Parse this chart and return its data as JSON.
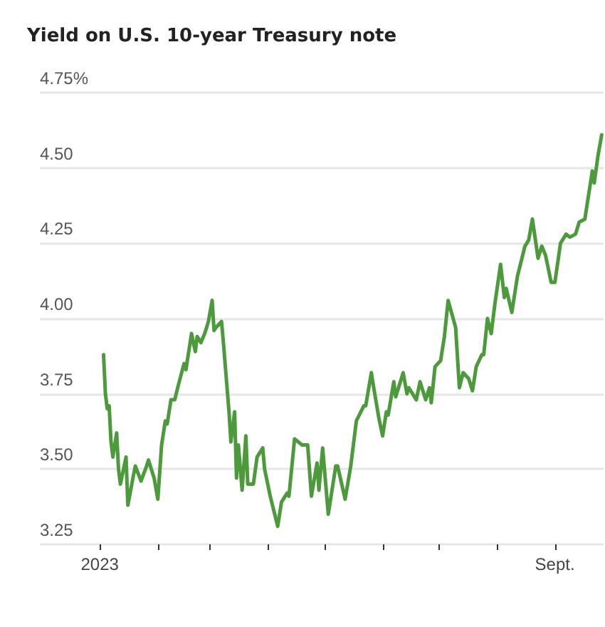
{
  "chart_data": {
    "type": "line",
    "title": "Yield on U.S. 10-year Treasury note",
    "x": [
      "2023-01-03",
      "2023-01-04",
      "2023-01-05",
      "2023-01-06",
      "2023-01-07",
      "2023-01-08",
      "2023-01-10",
      "2023-01-11",
      "2023-01-12",
      "2023-01-15",
      "2023-01-16",
      "2023-01-19",
      "2023-01-20",
      "2023-01-23",
      "2023-01-26",
      "2023-01-27",
      "2023-01-30",
      "2023-02-01",
      "2023-02-03",
      "2023-02-05",
      "2023-02-06",
      "2023-02-08",
      "2023-02-10",
      "2023-02-12",
      "2023-02-15",
      "2023-02-16",
      "2023-02-19",
      "2023-02-21",
      "2023-02-22",
      "2023-02-24",
      "2023-02-26",
      "2023-02-28",
      "2023-03-02",
      "2023-03-03",
      "2023-03-04",
      "2023-03-07",
      "2023-03-08",
      "2023-03-11",
      "2023-03-12",
      "2023-03-14",
      "2023-03-15",
      "2023-03-16",
      "2023-03-18",
      "2023-03-20",
      "2023-03-21",
      "2023-03-24",
      "2023-03-26",
      "2023-03-29",
      "2023-03-30",
      "2023-04-02",
      "2023-04-06",
      "2023-04-08",
      "2023-04-11",
      "2023-04-12",
      "2023-04-15",
      "2023-04-19",
      "2023-04-22",
      "2023-04-24",
      "2023-04-27",
      "2023-04-28",
      "2023-04-30",
      "2023-05-03",
      "2023-05-07",
      "2023-05-08",
      "2023-05-12",
      "2023-05-15",
      "2023-05-18",
      "2023-05-22",
      "2023-05-23",
      "2023-05-26",
      "2023-05-27",
      "2023-05-30",
      "2023-06-01",
      "2023-06-03",
      "2023-06-04",
      "2023-06-07",
      "2023-06-08",
      "2023-06-12",
      "2023-06-14",
      "2023-06-15",
      "2023-06-19",
      "2023-06-21",
      "2023-06-24",
      "2023-06-26",
      "2023-06-27",
      "2023-06-29",
      "2023-07-02",
      "2023-07-04",
      "2023-07-06",
      "2023-07-10",
      "2023-07-12",
      "2023-07-14",
      "2023-07-17",
      "2023-07-19",
      "2023-07-21",
      "2023-07-24",
      "2023-07-25",
      "2023-07-27",
      "2023-07-29",
      "2023-07-31",
      "2023-08-03",
      "2023-08-05",
      "2023-08-06",
      "2023-08-09",
      "2023-08-12",
      "2023-08-16",
      "2023-08-18",
      "2023-08-20",
      "2023-08-23",
      "2023-08-25",
      "2023-08-27",
      "2023-08-30",
      "2023-09-01",
      "2023-09-04",
      "2023-09-07",
      "2023-09-09",
      "2023-09-12",
      "2023-09-14",
      "2023-09-17",
      "2023-09-19",
      "2023-09-21",
      "2023-09-22",
      "2023-09-24",
      "2023-09-26"
    ],
    "series": [
      {
        "color": "#4c9a3c",
        "values": [
          3.88,
          3.75,
          3.7,
          3.71,
          3.59,
          3.54,
          3.62,
          3.5,
          3.45,
          3.54,
          3.38,
          3.48,
          3.51,
          3.46,
          3.51,
          3.53,
          3.47,
          3.4,
          3.58,
          3.66,
          3.65,
          3.73,
          3.73,
          3.78,
          3.85,
          3.83,
          3.95,
          3.89,
          3.94,
          3.92,
          3.95,
          3.99,
          4.06,
          3.96,
          3.97,
          3.99,
          3.92,
          3.69,
          3.59,
          3.69,
          3.47,
          3.58,
          3.43,
          3.61,
          3.45,
          3.45,
          3.54,
          3.57,
          3.5,
          3.41,
          3.31,
          3.39,
          3.42,
          3.41,
          3.6,
          3.58,
          3.58,
          3.41,
          3.52,
          3.43,
          3.57,
          3.35,
          3.51,
          3.51,
          3.4,
          3.51,
          3.66,
          3.71,
          3.71,
          3.82,
          3.78,
          3.67,
          3.61,
          3.69,
          3.68,
          3.79,
          3.74,
          3.82,
          3.75,
          3.77,
          3.73,
          3.79,
          3.73,
          3.77,
          3.72,
          3.84,
          3.86,
          3.94,
          4.06,
          3.97,
          3.77,
          3.82,
          3.8,
          3.76,
          3.84,
          3.88,
          3.88,
          4.0,
          3.95,
          4.05,
          4.18,
          4.07,
          4.1,
          4.02,
          4.14,
          4.24,
          4.26,
          4.33,
          4.2,
          4.24,
          4.21,
          4.12,
          4.12,
          4.25,
          4.28,
          4.27,
          4.28,
          4.32,
          4.33,
          4.41,
          4.49,
          4.45,
          4.54,
          4.61
        ]
      }
    ],
    "xlim": [
      "2022-11-30",
      "2023-09-27"
    ],
    "xticks": [
      {
        "value": "2023-01-01",
        "label": "2023"
      },
      {
        "value": "2023-02-01",
        "label": null
      },
      {
        "value": "2023-03-01",
        "label": null
      },
      {
        "value": "2023-04-01",
        "label": null
      },
      {
        "value": "2023-05-01",
        "label": null
      },
      {
        "value": "2023-06-01",
        "label": null
      },
      {
        "value": "2023-07-01",
        "label": null
      },
      {
        "value": "2023-08-01",
        "label": null
      },
      {
        "value": "2023-09-01",
        "label": "Sept."
      }
    ],
    "ylim": [
      3.25,
      4.75
    ],
    "yticks": [
      {
        "value": 3.25,
        "label": "3.25"
      },
      {
        "value": 3.5,
        "label": "3.50"
      },
      {
        "value": 3.75,
        "label": "3.75"
      },
      {
        "value": 4.0,
        "label": "4.00"
      },
      {
        "value": 4.25,
        "label": "4.25"
      },
      {
        "value": 4.5,
        "label": "4.50"
      },
      {
        "value": 4.75,
        "label": "4.75%"
      }
    ],
    "grid": "y",
    "marker": "none",
    "line_style": "solid"
  }
}
